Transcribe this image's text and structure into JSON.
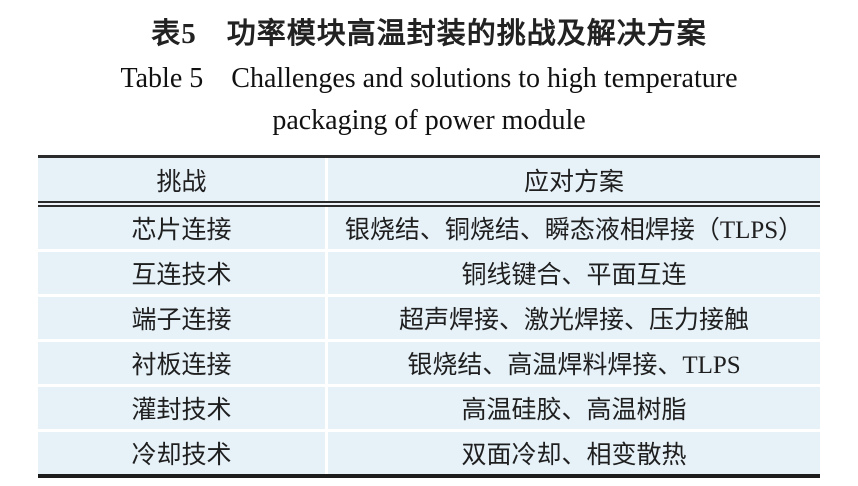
{
  "caption": {
    "zh": "表5　功率模块高温封装的挑战及解决方案",
    "en_line1": "Table 5　Challenges and solutions to high temperature",
    "en_line2": "packaging of power module"
  },
  "table": {
    "headers": [
      "挑战",
      "应对方案"
    ],
    "rows": [
      {
        "challenge": "芯片连接",
        "solution": "银烧结、铜烧结、瞬态液相焊接（TLPS）"
      },
      {
        "challenge": "互连技术",
        "solution": "铜线键合、平面互连"
      },
      {
        "challenge": "端子连接",
        "solution": "超声焊接、激光焊接、压力接触"
      },
      {
        "challenge": "衬板连接",
        "solution": "银烧结、高温焊料焊接、TLPS"
      },
      {
        "challenge": "灌封技术",
        "solution": "高温硅胶、高温树脂"
      },
      {
        "challenge": "冷却技术",
        "solution": "双面冷却、相变散热"
      }
    ],
    "colors": {
      "row_background": "#e6f1f8",
      "rule_dark": "#2b2b2b",
      "separator_white": "#ffffff",
      "text": "#1f1f1f"
    }
  }
}
